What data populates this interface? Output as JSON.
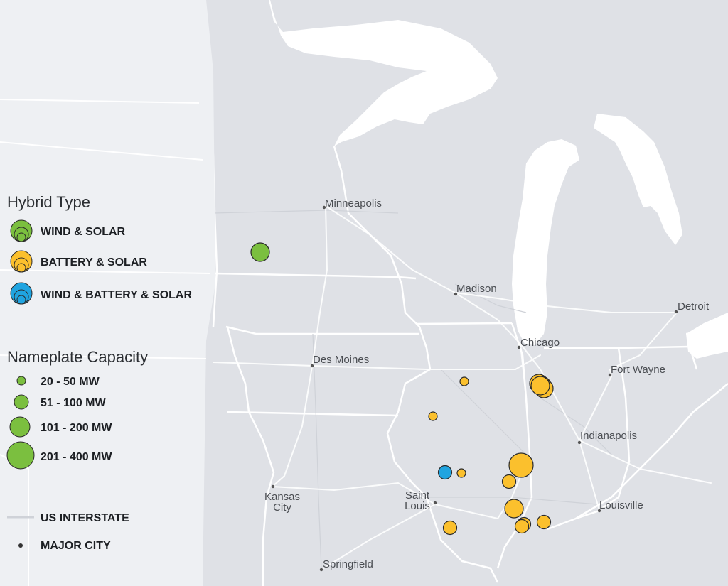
{
  "map": {
    "colors": {
      "land": "#dfe1e6",
      "legend_panel": "#eef0f3",
      "water": "#ffffff",
      "interstate": "#ffffff",
      "wind_solar": "#7bbf3f",
      "battery_solar": "#fbc02d",
      "wind_battery_solar": "#20a4e0",
      "marker_stroke": "#2a2a2a",
      "city_dot": "#555555"
    },
    "cities": [
      {
        "name": "Minneapolis"
      },
      {
        "name": "Madison"
      },
      {
        "name": "Detroit"
      },
      {
        "name": "Chicago"
      },
      {
        "name": "Des Moines"
      },
      {
        "name": "Fort Wayne"
      },
      {
        "name": "Indianapolis"
      },
      {
        "name": "Kansas City"
      },
      {
        "name": "Saint Louis"
      },
      {
        "name": "Louisville"
      },
      {
        "name": "Springfield"
      }
    ],
    "plants": [
      {
        "hybrid_type": "WIND & SOLAR",
        "capacity_class": "101 - 200 MW"
      },
      {
        "hybrid_type": "BATTERY & SOLAR",
        "capacity_class": "20 - 50 MW"
      },
      {
        "hybrid_type": "BATTERY & SOLAR",
        "capacity_class": "20 - 50 MW"
      },
      {
        "hybrid_type": "BATTERY & SOLAR",
        "capacity_class": "101 - 200 MW"
      },
      {
        "hybrid_type": "BATTERY & SOLAR",
        "capacity_class": "101 - 200 MW"
      },
      {
        "hybrid_type": "BATTERY & SOLAR",
        "capacity_class": "101 - 200 MW"
      },
      {
        "hybrid_type": "BATTERY & SOLAR",
        "capacity_class": "101 - 200 MW"
      },
      {
        "hybrid_type": "WIND & BATTERY & SOLAR",
        "capacity_class": "51 - 100 MW"
      },
      {
        "hybrid_type": "BATTERY & SOLAR",
        "capacity_class": "20 - 50 MW"
      },
      {
        "hybrid_type": "BATTERY & SOLAR",
        "capacity_class": "201 - 400 MW"
      },
      {
        "hybrid_type": "BATTERY & SOLAR",
        "capacity_class": "51 - 100 MW"
      },
      {
        "hybrid_type": "BATTERY & SOLAR",
        "capacity_class": "101 - 200 MW"
      },
      {
        "hybrid_type": "BATTERY & SOLAR",
        "capacity_class": "51 - 100 MW"
      },
      {
        "hybrid_type": "BATTERY & SOLAR",
        "capacity_class": "51 - 100 MW"
      },
      {
        "hybrid_type": "BATTERY & SOLAR",
        "capacity_class": "51 - 100 MW"
      },
      {
        "hybrid_type": "BATTERY & SOLAR",
        "capacity_class": "51 - 100 MW"
      }
    ]
  },
  "legend": {
    "hybrid_type_title": "Hybrid Type",
    "hybrid_types": [
      "WIND & SOLAR",
      "BATTERY & SOLAR",
      "WIND & BATTERY & SOLAR"
    ],
    "capacity_title": "Nameplate Capacity",
    "capacity_classes": [
      "20 - 50 MW",
      "51 - 100 MW",
      "101 - 200 MW",
      "201 - 400 MW"
    ],
    "interstate_label": "US INTERSTATE",
    "city_label": "MAJOR CITY"
  }
}
